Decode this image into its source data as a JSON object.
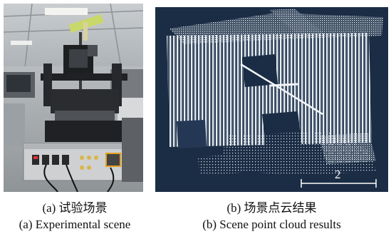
{
  "panel_a": {
    "caption_zh": "(a) 试验场景",
    "caption_en": "(a) Experimental scene"
  },
  "panel_b": {
    "caption_zh": "(b) 场景点云结果",
    "caption_en": "(b) Scene point cloud results",
    "scale_bar_label": "2",
    "colors": {
      "background": "#1b2d45",
      "points": "#e8edf2"
    }
  }
}
